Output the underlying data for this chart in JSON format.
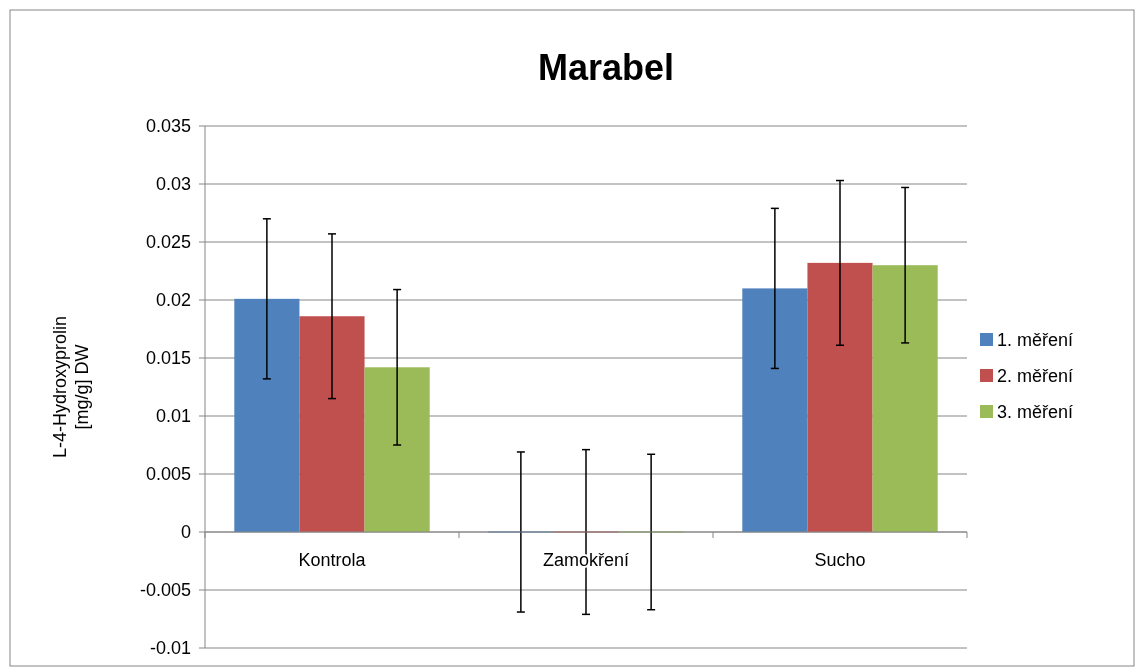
{
  "chart_data": {
    "type": "bar",
    "title": "Marabel",
    "ylabel": "L-4-Hydroxyprolin [mg/g] DW",
    "categories": [
      "Kontrola",
      "Zamokření",
      "Sucho"
    ],
    "series": [
      {
        "name": "1. měření",
        "color": "#4f81bd",
        "values": [
          0.0201,
          0,
          0.021
        ],
        "errors": [
          0.0069,
          0.0069,
          0.0069
        ]
      },
      {
        "name": "2. měření",
        "color": "#c0504d",
        "values": [
          0.0186,
          0,
          0.0232
        ],
        "errors": [
          0.0071,
          0.0071,
          0.0071
        ]
      },
      {
        "name": "3. měření",
        "color": "#9bbb59",
        "values": [
          0.0142,
          0,
          0.023
        ],
        "errors": [
          0.0067,
          0.0067,
          0.0067
        ]
      }
    ],
    "ylim": [
      -0.01,
      0.035
    ],
    "yticks": [
      -0.01,
      -0.005,
      0,
      0.005,
      0.01,
      0.015,
      0.02,
      0.025,
      0.03,
      0.035
    ],
    "grid": "y",
    "legend": "right"
  }
}
